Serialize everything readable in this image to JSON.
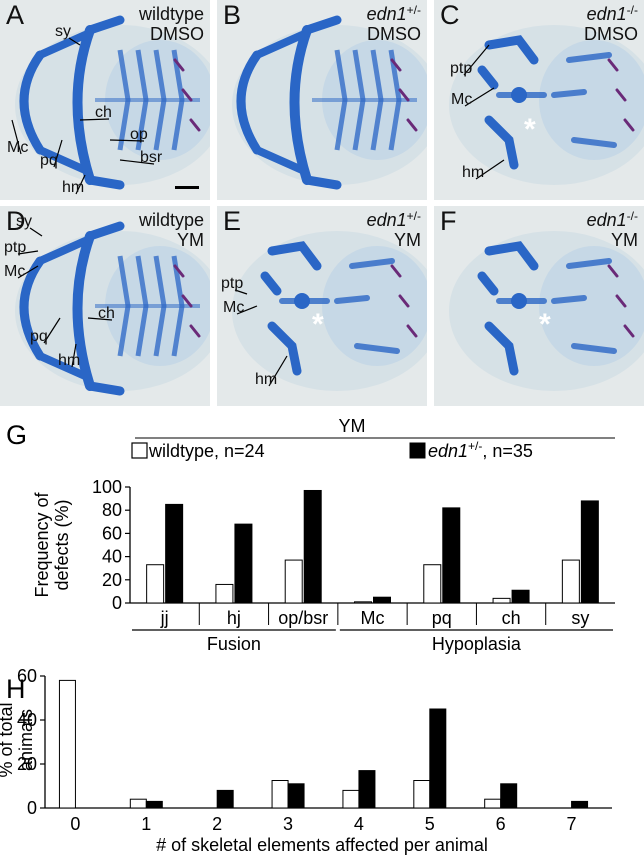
{
  "panels": [
    {
      "letter": "A",
      "genotype_main": "wildtype",
      "genotype_sup": "",
      "treatment": "DMSO",
      "labels": [
        "sy",
        "ch",
        "Mc",
        "pq",
        "hm",
        "op",
        "bsr"
      ]
    },
    {
      "letter": "B",
      "genotype_main": "edn1",
      "genotype_sup": "+/-",
      "treatment": "DMSO"
    },
    {
      "letter": "C",
      "genotype_main": "edn1",
      "genotype_sup": "-/-",
      "treatment": "DMSO",
      "labels": [
        "ptp",
        "Mc",
        "hm"
      ],
      "asterisk": "*"
    },
    {
      "letter": "D",
      "genotype_main": "wildtype",
      "genotype_sup": "",
      "treatment": "YM",
      "labels": [
        "sy",
        "ptp",
        "Mc",
        "ch",
        "pq",
        "hm"
      ]
    },
    {
      "letter": "E",
      "genotype_main": "edn1",
      "genotype_sup": "+/-",
      "treatment": "YM",
      "labels": [
        "ptp",
        "Mc",
        "hm"
      ],
      "asterisk": "*"
    },
    {
      "letter": "F",
      "genotype_main": "edn1",
      "genotype_sup": "-/-",
      "treatment": "YM",
      "asterisk": "*"
    }
  ],
  "colors": {
    "cartilage": "#2a66c6",
    "background": "#e4e9ea",
    "bone": "#6a2a78",
    "wildtype_bar": "#ffffff",
    "het_bar": "#000000"
  },
  "chart_data": [
    {
      "panel": "G",
      "type": "bar",
      "header": "YM",
      "legend": [
        {
          "name": "wildtype, n=24",
          "color": "#ffffff"
        },
        {
          "name_main": "edn1",
          "name_sup": "+/-",
          "name_rest": ", n=35",
          "color": "#000000"
        }
      ],
      "ylabel_line1": "Frequency of",
      "ylabel_line2": "defects (%)",
      "ylim": [
        0,
        100
      ],
      "yticks": [
        0,
        20,
        40,
        60,
        80,
        100
      ],
      "categories": [
        "jj",
        "hj",
        "op/bsr",
        "Mc",
        "pq",
        "ch",
        "sy"
      ],
      "groups": [
        {
          "label": "Fusion",
          "span": [
            0,
            2
          ]
        },
        {
          "label": "Hypoplasia",
          "span": [
            3,
            6
          ]
        }
      ],
      "series": [
        {
          "name": "wildtype, n=24",
          "values": [
            33,
            16,
            37,
            1,
            33,
            4,
            37
          ]
        },
        {
          "name": "edn1+/-, n=35",
          "values": [
            85,
            68,
            97,
            5,
            82,
            11,
            88
          ]
        }
      ]
    },
    {
      "panel": "H",
      "type": "bar",
      "ylabel_line1": "% of total",
      "ylabel_line2": "animals",
      "xlabel": "# of skeletal elements affected per animal",
      "ylim": [
        0,
        60
      ],
      "yticks": [
        0,
        20,
        40,
        60
      ],
      "categories": [
        "0",
        "1",
        "2",
        "3",
        "4",
        "5",
        "6",
        "7"
      ],
      "series": [
        {
          "name": "wildtype, n=24",
          "values": [
            58,
            4,
            0,
            12.5,
            8,
            12.5,
            4,
            0
          ]
        },
        {
          "name": "edn1+/-, n=35",
          "values": [
            0,
            3,
            8,
            11,
            17,
            45,
            11,
            3
          ]
        }
      ]
    }
  ]
}
